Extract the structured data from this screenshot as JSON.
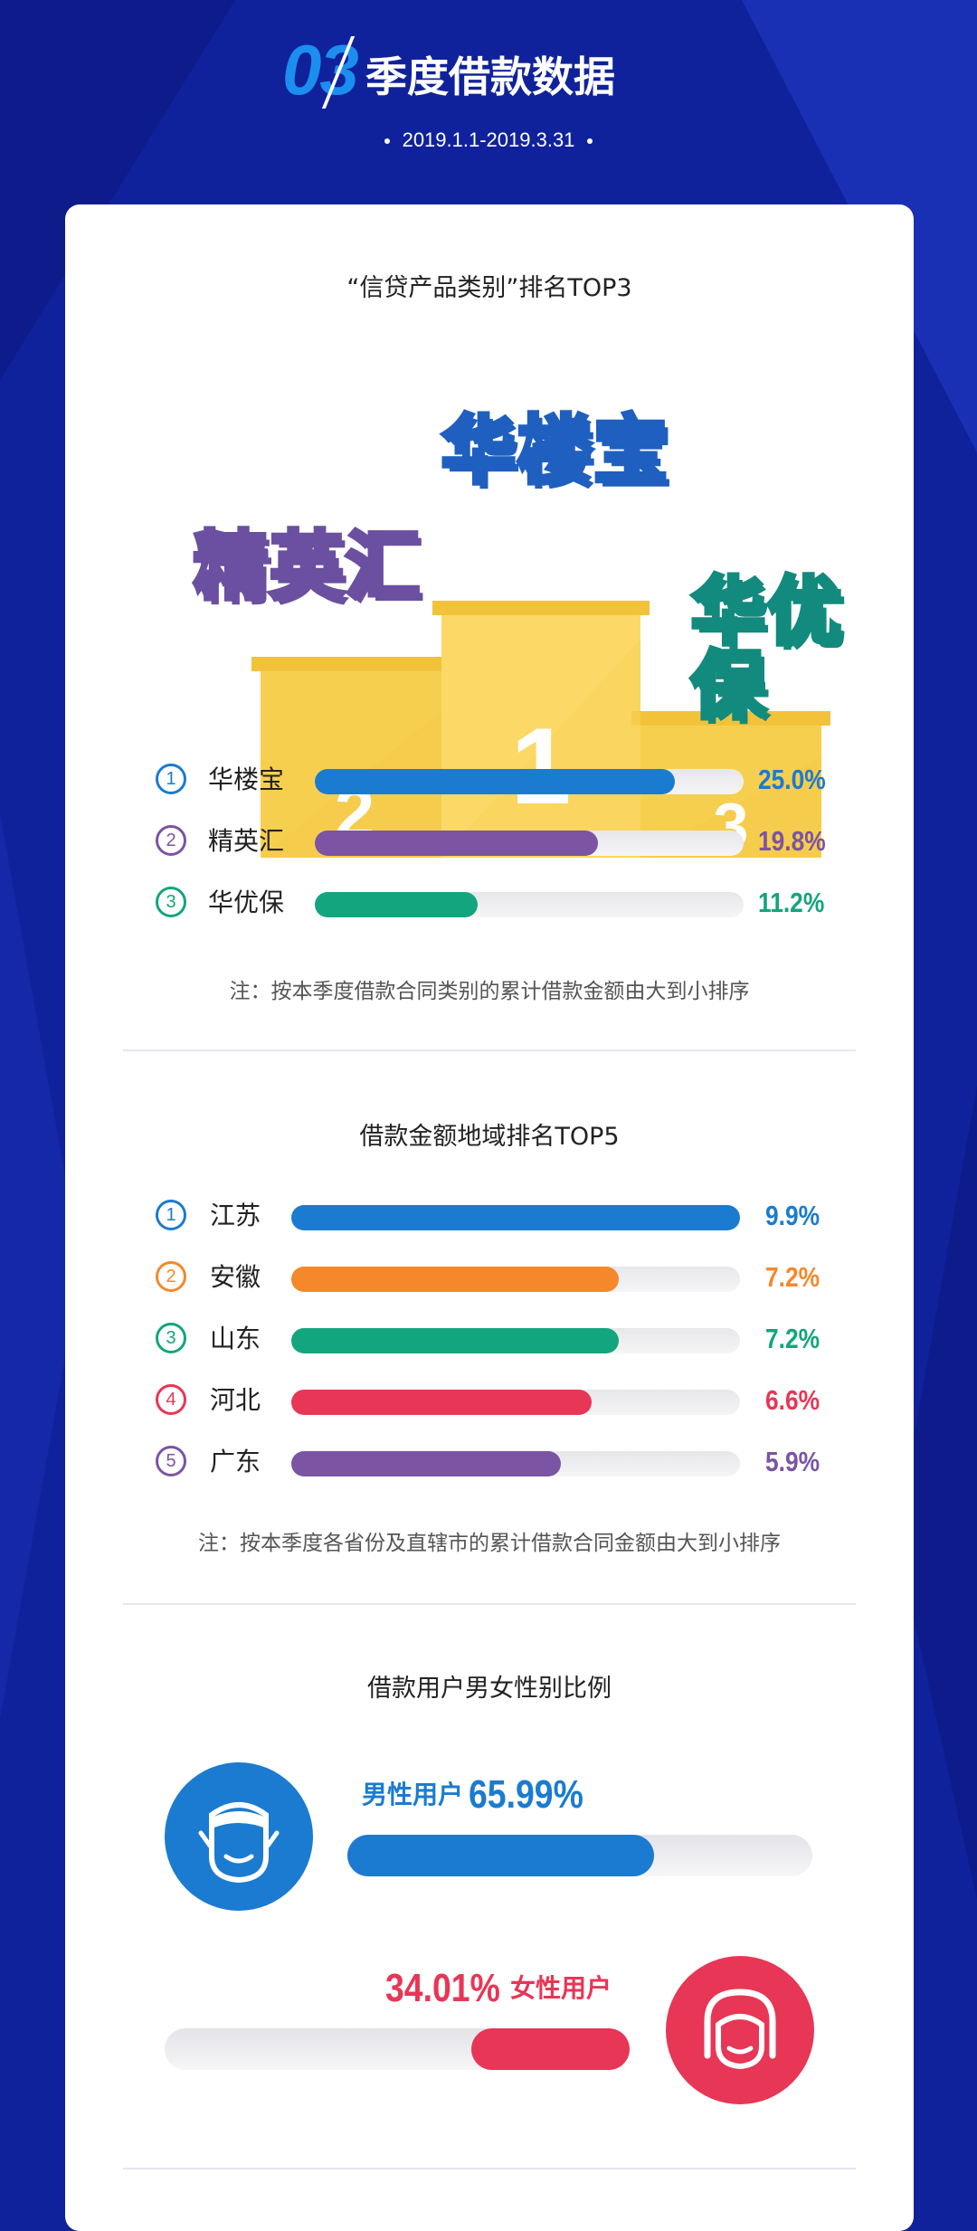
{
  "header": {
    "number": "03",
    "title": "季度借款数据",
    "date_range": "2019.1.1-2019.3.31"
  },
  "section1": {
    "title": "“信贷产品类别”排名TOP3",
    "podium_names": [
      "华楼宝",
      "精英汇",
      "华优保"
    ],
    "podium_numbers": [
      "1",
      "2",
      "3"
    ],
    "rows": [
      {
        "rank": "1",
        "name": "华楼宝",
        "value": "25.0%",
        "fraction": 0.84,
        "color": "#1b7bd0"
      },
      {
        "rank": "2",
        "name": "精英汇",
        "value": "19.8%",
        "fraction": 0.66,
        "color": "#7b54a4"
      },
      {
        "rank": "3",
        "name": "华优保",
        "value": "11.2%",
        "fraction": 0.38,
        "color": "#13a57e"
      }
    ],
    "note": "注：按本季度借款合同类别的累计借款金额由大到小排序"
  },
  "section2": {
    "title": "借款金额地域排名TOP5",
    "rows": [
      {
        "rank": "1",
        "name": "江苏",
        "value": "9.9%",
        "fraction": 1.0,
        "color": "#1b7bd0"
      },
      {
        "rank": "2",
        "name": "安徽",
        "value": "7.2%",
        "fraction": 0.73,
        "color": "#f5882a"
      },
      {
        "rank": "3",
        "name": "山东",
        "value": "7.2%",
        "fraction": 0.73,
        "color": "#13a57e"
      },
      {
        "rank": "4",
        "name": "河北",
        "value": "6.6%",
        "fraction": 0.67,
        "color": "#e83656"
      },
      {
        "rank": "5",
        "name": "广东",
        "value": "5.9%",
        "fraction": 0.6,
        "color": "#7b54a4"
      }
    ],
    "note": "注：按本季度各省份及直辖市的累计借款合同金额由大到小排序"
  },
  "section3": {
    "title": "借款用户男女性别比例",
    "male": {
      "label": "男性用户",
      "value": "65.99%",
      "fraction": 0.66,
      "color": "#1b7bd0"
    },
    "female": {
      "label": "女性用户",
      "value": "34.01%",
      "fraction": 0.34,
      "color": "#e83656"
    }
  },
  "icons": [
    "male-face-icon",
    "female-face-icon"
  ]
}
